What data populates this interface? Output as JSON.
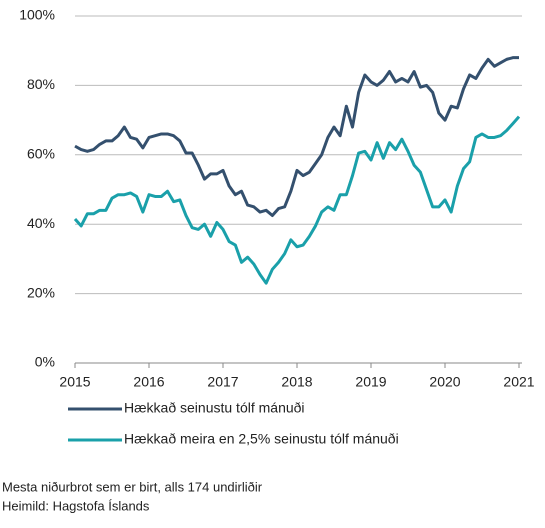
{
  "chart_data": {
    "type": "line",
    "x": [
      2015,
      2015.083,
      2015.167,
      2015.25,
      2015.333,
      2015.417,
      2015.5,
      2015.583,
      2015.667,
      2015.75,
      2015.833,
      2015.917,
      2016,
      2016.083,
      2016.167,
      2016.25,
      2016.333,
      2016.417,
      2016.5,
      2016.583,
      2016.667,
      2016.75,
      2016.833,
      2016.917,
      2017,
      2017.083,
      2017.167,
      2017.25,
      2017.333,
      2017.417,
      2017.5,
      2017.583,
      2017.667,
      2017.75,
      2017.833,
      2017.917,
      2018,
      2018.083,
      2018.167,
      2018.25,
      2018.333,
      2018.417,
      2018.5,
      2018.583,
      2018.667,
      2018.75,
      2018.833,
      2018.917,
      2019,
      2019.083,
      2019.167,
      2019.25,
      2019.333,
      2019.417,
      2019.5,
      2019.583,
      2019.667,
      2019.75,
      2019.833,
      2019.917,
      2020,
      2020.083,
      2020.167,
      2020.25,
      2020.333,
      2020.417,
      2020.5,
      2020.583,
      2020.667,
      2020.75,
      2020.833,
      2020.917,
      2021
    ],
    "series": [
      {
        "name": "Hækkað seinustu tólf mánuði",
        "color": "#34506e",
        "values": [
          62.5,
          61.5,
          61,
          61.5,
          63,
          64,
          64,
          65.5,
          68,
          65,
          64.5,
          62,
          65,
          65.5,
          66,
          66,
          65.5,
          64,
          60.5,
          60.5,
          57,
          53,
          54.5,
          54.5,
          55.5,
          51,
          48.5,
          49.5,
          45.5,
          45,
          43.5,
          44,
          42.5,
          44.5,
          45,
          49.5,
          55.5,
          54,
          55,
          57.5,
          60,
          65,
          68,
          65.5,
          74,
          68,
          78,
          83,
          81,
          80,
          81.5,
          84,
          81,
          82,
          81,
          84,
          79.5,
          80,
          78,
          72,
          70,
          74,
          73.5,
          79,
          83,
          82,
          85,
          87.5,
          85.5,
          86.5,
          87.5,
          88,
          88
        ]
      },
      {
        "name": "Hækkað meira en 2,5% seinustu tólf mánuði",
        "color": "#1aa0aa",
        "values": [
          41.5,
          39.5,
          43,
          43,
          44,
          44,
          47.5,
          48.5,
          48.5,
          49,
          48,
          43.5,
          48.5,
          48,
          48,
          49.5,
          46.5,
          47,
          42.5,
          39,
          38.5,
          40,
          36.5,
          40.5,
          38.5,
          35,
          34,
          29,
          30.5,
          28.5,
          25.5,
          23,
          27,
          29,
          31.5,
          35.5,
          33.5,
          34,
          36.5,
          39.5,
          43.5,
          45,
          44,
          48.5,
          48.5,
          54,
          60.5,
          61,
          58.5,
          63.5,
          59,
          63.5,
          61.5,
          64.5,
          61,
          57,
          55,
          50,
          45,
          45,
          47,
          43.5,
          51,
          56,
          58,
          65,
          66,
          65,
          65,
          65.5,
          67,
          69,
          71
        ]
      }
    ],
    "xlim": [
      2015,
      2021
    ],
    "xticks": [
      2015,
      2016,
      2017,
      2018,
      2019,
      2020,
      2021
    ],
    "ylim": [
      0,
      100
    ],
    "yticks": [
      {
        "value": 0,
        "label": "0%"
      },
      {
        "value": 20,
        "label": "20%"
      },
      {
        "value": 40,
        "label": "40%"
      },
      {
        "value": 60,
        "label": "60%"
      },
      {
        "value": 80,
        "label": "80%"
      },
      {
        "value": 100,
        "label": "100%"
      }
    ],
    "grid": true,
    "notes": [
      "Mesta niðurbrot sem er birt, alls 174 undirliðir",
      "Heimild: Hagstofa Íslands"
    ]
  }
}
